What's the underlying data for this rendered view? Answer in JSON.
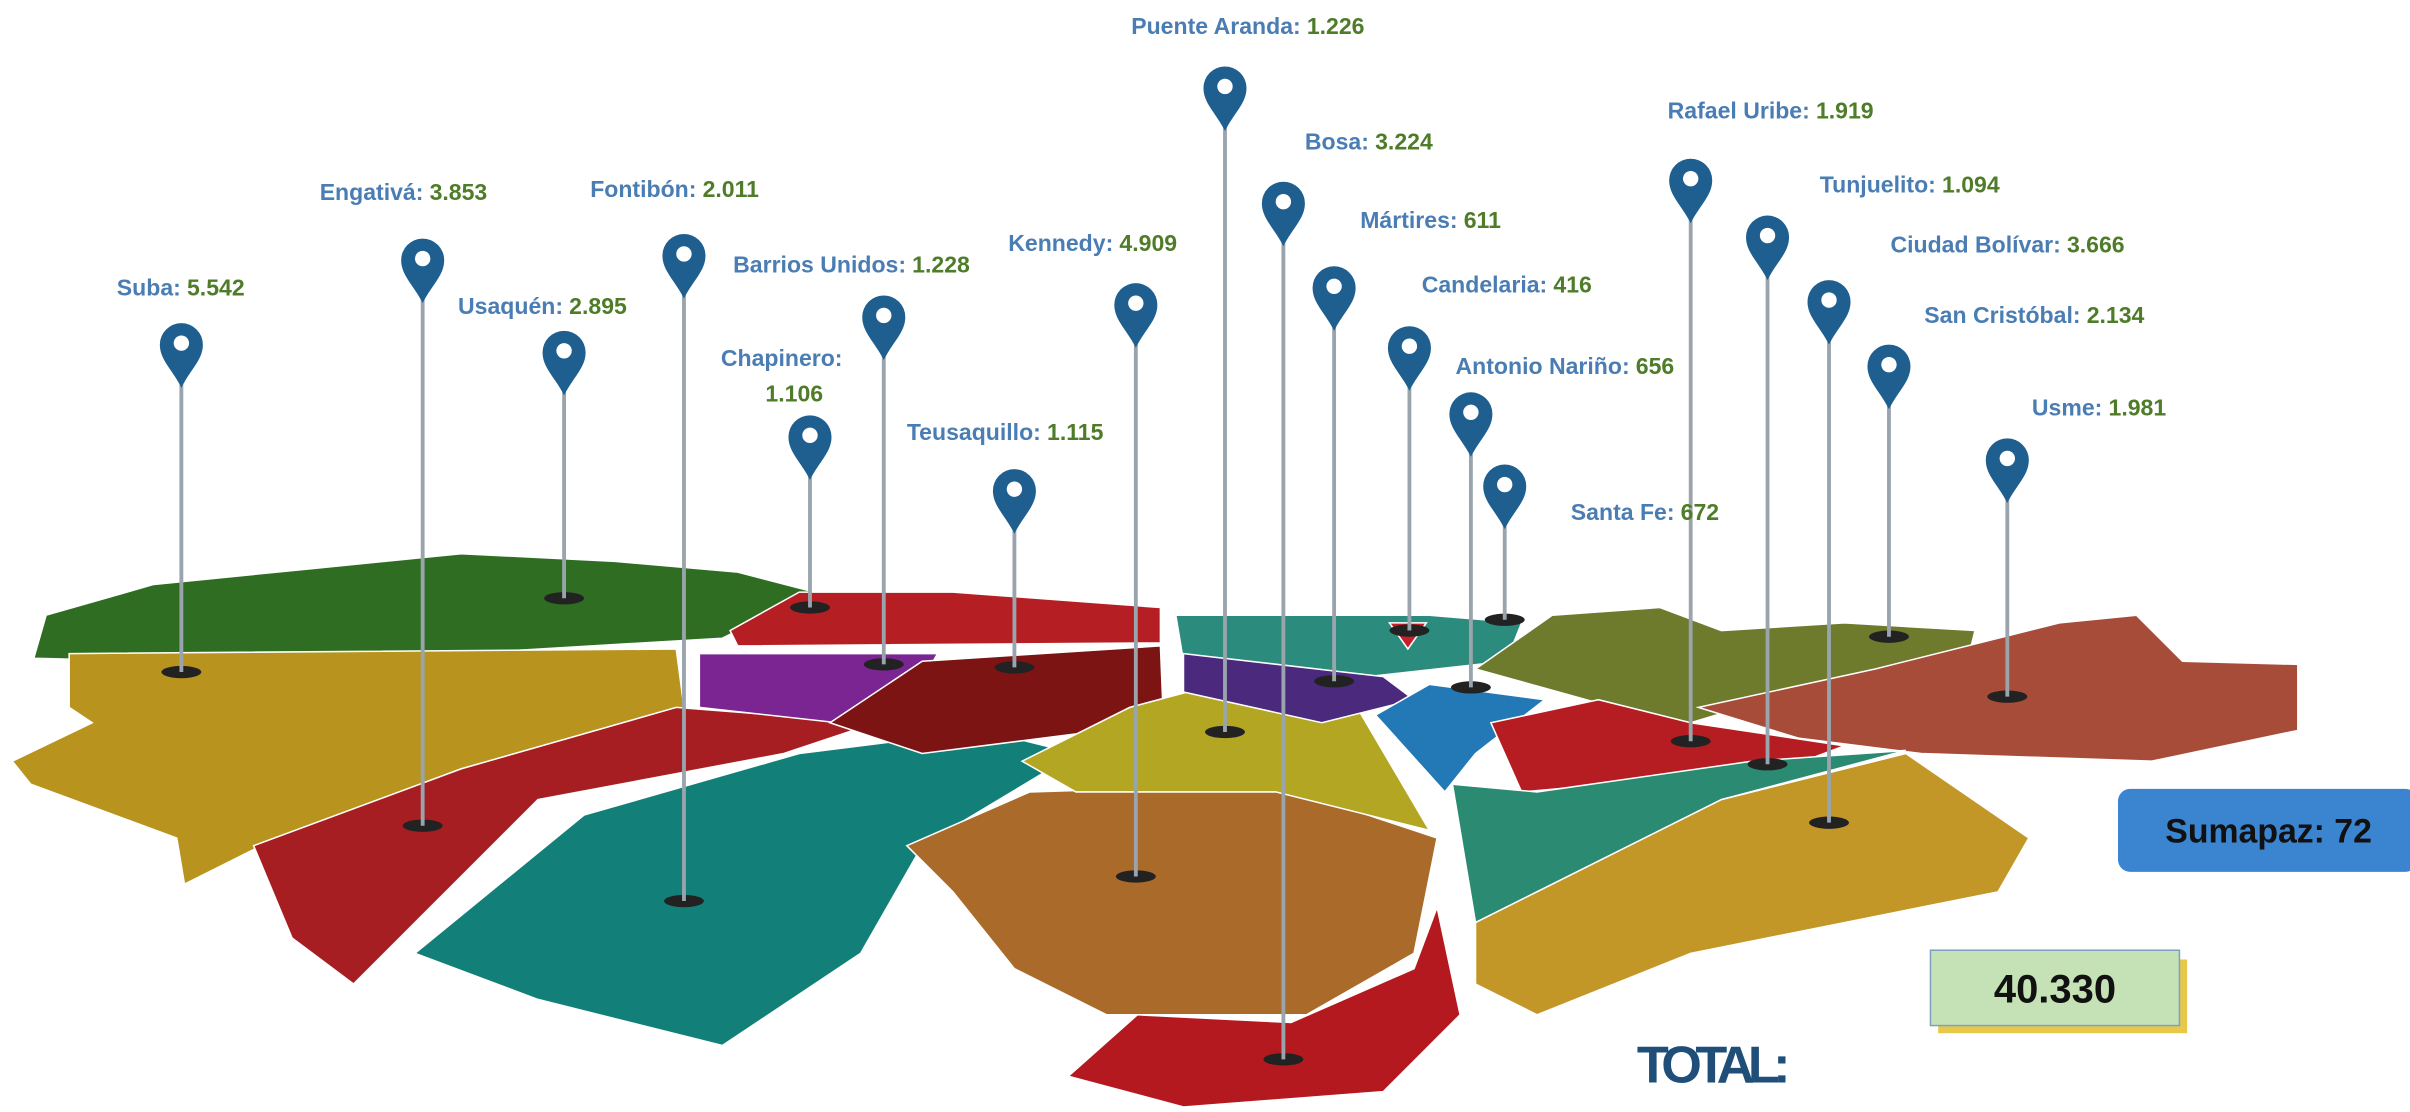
{
  "localities": [
    {
      "name": "Suba:",
      "value": "5.542"
    },
    {
      "name": "Engativá:",
      "value": "3.853"
    },
    {
      "name": "Usaquén:",
      "value": "2.895"
    },
    {
      "name": "Fontibón:",
      "value": "2.011"
    },
    {
      "name": "Barrios Unidos:",
      "value": "1.228"
    },
    {
      "name": "Chapinero:",
      "value": "1.106"
    },
    {
      "name": "Teusaquillo:",
      "value": "1.115"
    },
    {
      "name": "Kennedy:",
      "value": "4.909"
    },
    {
      "name": "Puente Aranda:",
      "value": "1.226"
    },
    {
      "name": "Bosa:",
      "value": "3.224"
    },
    {
      "name": "Mártires:",
      "value": "611"
    },
    {
      "name": "Candelaria:",
      "value": "416"
    },
    {
      "name": "Antonio Nariño:",
      "value": "656"
    },
    {
      "name": "Santa Fe:",
      "value": "672"
    },
    {
      "name": "Rafael Uribe:",
      "value": "1.919"
    },
    {
      "name": "Tunjuelito:",
      "value": "1.094"
    },
    {
      "name": "Ciudad Bolívar:",
      "value": "3.666"
    },
    {
      "name": "San Cristóbal:",
      "value": "2.134"
    },
    {
      "name": "Usme:",
      "value": "1.981"
    }
  ],
  "sumapaz": "Sumapaz: 72",
  "total": {
    "label": "TOTAL:",
    "value": "40.330"
  }
}
